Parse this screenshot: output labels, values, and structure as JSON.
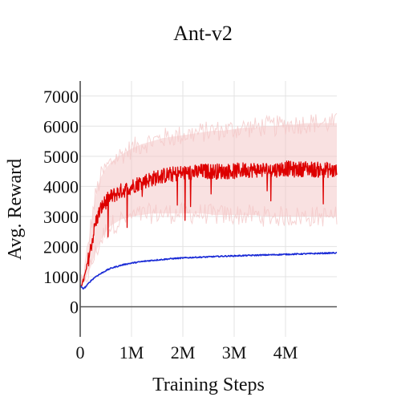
{
  "chart_data": {
    "type": "line",
    "title": "Ant-v2",
    "xlabel": "Training Steps",
    "ylabel": "Avg. Reward",
    "xlim": [
      0,
      5000000
    ],
    "ylim": [
      -1000,
      7500
    ],
    "x_ticks": [
      {
        "value": 0,
        "label": "0"
      },
      {
        "value": 1000000,
        "label": "1M"
      },
      {
        "value": 2000000,
        "label": "2M"
      },
      {
        "value": 3000000,
        "label": "3M"
      },
      {
        "value": 4000000,
        "label": "4M"
      }
    ],
    "y_ticks": [
      {
        "value": 0,
        "label": "0"
      },
      {
        "value": 1000,
        "label": "1000"
      },
      {
        "value": 2000,
        "label": "2000"
      },
      {
        "value": 3000,
        "label": "3000"
      },
      {
        "value": 4000,
        "label": "4000"
      },
      {
        "value": 5000,
        "label": "5000"
      },
      {
        "value": 6000,
        "label": "6000"
      },
      {
        "value": 7000,
        "label": "7000"
      }
    ],
    "grid": true,
    "legend": "none",
    "series": [
      {
        "color": "#dd0000",
        "band_color": "#f4c8c8",
        "x": [
          0,
          50000,
          100000,
          200000,
          300000,
          400000,
          500000,
          600000,
          700000,
          800000,
          900000,
          1000000,
          1200000,
          1400000,
          1600000,
          1800000,
          2000000,
          2200000,
          2400000,
          2600000,
          2800000,
          3000000,
          3200000,
          3400000,
          3600000,
          3800000,
          4000000,
          4200000,
          4400000,
          4600000,
          4800000,
          5000000
        ],
        "y": [
          700,
          800,
          1100,
          1900,
          2800,
          3250,
          3500,
          3650,
          3750,
          3850,
          3900,
          4000,
          4150,
          4250,
          4350,
          4400,
          4450,
          4450,
          4500,
          4500,
          4500,
          4500,
          4550,
          4550,
          4550,
          4550,
          4600,
          4550,
          4600,
          4550,
          4550,
          4500
        ],
        "y_low": [
          700,
          750,
          900,
          1300,
          1800,
          2200,
          2500,
          2700,
          2800,
          2900,
          2950,
          3000,
          3050,
          3100,
          3100,
          3100,
          3100,
          3100,
          3100,
          3050,
          3050,
          3050,
          3050,
          3050,
          3000,
          3000,
          3000,
          3000,
          3000,
          3000,
          3000,
          3000
        ],
        "y_high": [
          700,
          850,
          1300,
          2600,
          3700,
          4300,
          4600,
          4800,
          4950,
          5050,
          5150,
          5250,
          5400,
          5500,
          5600,
          5650,
          5700,
          5750,
          5800,
          5850,
          5850,
          5900,
          5950,
          5950,
          6000,
          6000,
          6050,
          6050,
          6100,
          6100,
          6100,
          6100
        ]
      },
      {
        "color": "#1a2bd6",
        "x": [
          0,
          50000,
          100000,
          200000,
          300000,
          400000,
          500000,
          600000,
          700000,
          800000,
          900000,
          1000000,
          1200000,
          1400000,
          1600000,
          1800000,
          2000000,
          2200000,
          2400000,
          2600000,
          2800000,
          3000000,
          3200000,
          3400000,
          3600000,
          3800000,
          4000000,
          4200000,
          4400000,
          4600000,
          4800000,
          5000000
        ],
        "y": [
          700,
          600,
          650,
          850,
          1000,
          1100,
          1200,
          1280,
          1330,
          1380,
          1420,
          1450,
          1500,
          1540,
          1570,
          1600,
          1620,
          1640,
          1650,
          1665,
          1680,
          1690,
          1700,
          1710,
          1720,
          1730,
          1740,
          1750,
          1760,
          1770,
          1780,
          1790
        ]
      }
    ]
  }
}
